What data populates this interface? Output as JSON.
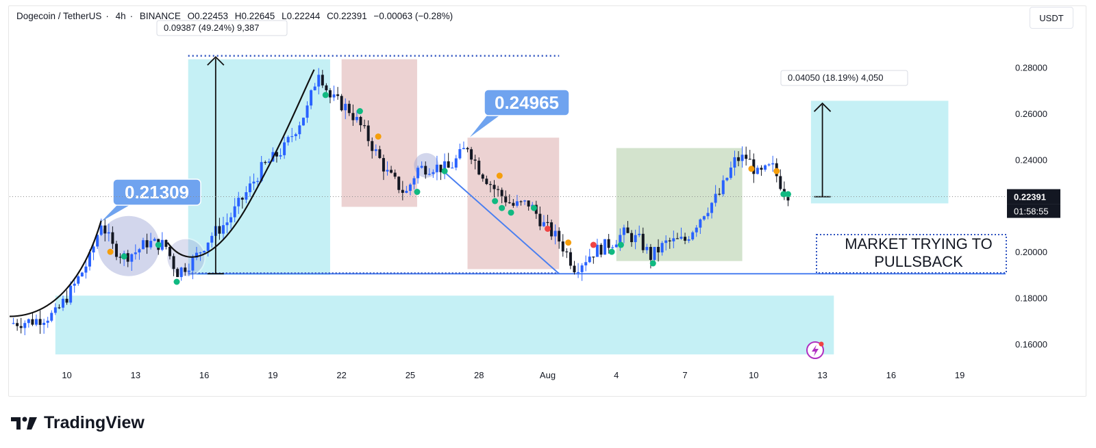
{
  "header": {
    "symbol": "Dogecoin / TetherUS",
    "interval": "4h",
    "exchange": "BINANCE",
    "open": "O0.22453",
    "high": "H0.22645",
    "low": "L0.22244",
    "close": "C0.22391",
    "change": "−0.00063 (−0.28%)"
  },
  "currency": "USDT",
  "brand": {
    "name": "TradingView"
  },
  "colors": {
    "bull": "#2962ff",
    "bear": "#131722",
    "zone_cyan": "#b2ebf2",
    "zone_red": "#e7c7c7",
    "zone_green": "#c8dcc0",
    "callout": "#6fa3ef",
    "trendline": "#4a7ff0"
  },
  "chart_data": {
    "type": "candlestick",
    "ylim": [
      0.152,
      0.292
    ],
    "x_range_days": [
      7.5,
      51
    ],
    "y_ticks": [
      "0.28000",
      "0.26000",
      "0.24000",
      "0.20000",
      "0.18000",
      "0.16000"
    ],
    "x_ticks": [
      {
        "label": "10",
        "day": 10
      },
      {
        "label": "13",
        "day": 13
      },
      {
        "label": "16",
        "day": 16
      },
      {
        "label": "19",
        "day": 19
      },
      {
        "label": "22",
        "day": 22
      },
      {
        "label": "25",
        "day": 25
      },
      {
        "label": "28",
        "day": 28
      },
      {
        "label": "Aug",
        "day": 31
      },
      {
        "label": "4",
        "day": 34
      },
      {
        "label": "7",
        "day": 37
      },
      {
        "label": "10",
        "day": 40
      },
      {
        "label": "13",
        "day": 43
      },
      {
        "label": "16",
        "day": 46
      },
      {
        "label": "19",
        "day": 49
      }
    ],
    "close_path": [
      [
        7.5,
        0.169
      ],
      [
        8.5,
        0.17
      ],
      [
        9.5,
        0.173
      ],
      [
        10.3,
        0.185
      ],
      [
        11.0,
        0.197
      ],
      [
        11.5,
        0.213
      ],
      [
        12.0,
        0.202
      ],
      [
        12.5,
        0.198
      ],
      [
        13.0,
        0.2
      ],
      [
        13.5,
        0.204
      ],
      [
        14.3,
        0.203
      ],
      [
        14.8,
        0.191
      ],
      [
        15.5,
        0.196
      ],
      [
        16.3,
        0.207
      ],
      [
        17.0,
        0.213
      ],
      [
        17.8,
        0.225
      ],
      [
        18.5,
        0.236
      ],
      [
        19.5,
        0.245
      ],
      [
        20.5,
        0.262
      ],
      [
        21.0,
        0.279
      ],
      [
        21.5,
        0.267
      ],
      [
        22.3,
        0.262
      ],
      [
        23.0,
        0.252
      ],
      [
        24.0,
        0.234
      ],
      [
        24.8,
        0.225
      ],
      [
        25.3,
        0.236
      ],
      [
        26.0,
        0.237
      ],
      [
        26.7,
        0.236
      ],
      [
        27.5,
        0.246
      ],
      [
        28.0,
        0.236
      ],
      [
        28.7,
        0.227
      ],
      [
        29.5,
        0.22
      ],
      [
        30.2,
        0.221
      ],
      [
        30.8,
        0.212
      ],
      [
        31.5,
        0.205
      ],
      [
        32.2,
        0.193
      ],
      [
        33.0,
        0.2
      ],
      [
        33.8,
        0.204
      ],
      [
        34.3,
        0.208
      ],
      [
        35.0,
        0.205
      ],
      [
        35.5,
        0.198
      ],
      [
        36.2,
        0.204
      ],
      [
        37.0,
        0.205
      ],
      [
        37.8,
        0.217
      ],
      [
        38.5,
        0.225
      ],
      [
        39.2,
        0.24
      ],
      [
        39.7,
        0.241
      ],
      [
        40.2,
        0.233
      ],
      [
        40.8,
        0.237
      ],
      [
        41.2,
        0.229
      ],
      [
        41.6,
        0.224
      ]
    ],
    "last_price": "0.22391",
    "countdown": "01:58:55",
    "callouts": [
      {
        "text": "0.21309",
        "day": 11.5,
        "price": 0.2131
      },
      {
        "text": "0.24965",
        "day": 27.6,
        "price": 0.2497
      }
    ],
    "measures": [
      {
        "label": "0.09387 (49.24%) 9,387",
        "day": 16.5,
        "from": 0.1905,
        "to": 0.2845
      },
      {
        "label": "0.04050 (18.19%) 4,050",
        "day": 43.0,
        "from": 0.2239,
        "to": 0.2644
      }
    ],
    "zones": [
      {
        "kind": "cyan",
        "d1": 9.5,
        "d2": 43.5,
        "p1": 0.1555,
        "p2": 0.181
      },
      {
        "kind": "cyan",
        "d1": 15.3,
        "d2": 21.5,
        "p1": 0.19,
        "p2": 0.2835
      },
      {
        "kind": "red",
        "d1": 22.0,
        "d2": 25.3,
        "p1": 0.2195,
        "p2": 0.2835
      },
      {
        "kind": "red",
        "d1": 27.5,
        "d2": 31.5,
        "p1": 0.1925,
        "p2": 0.2495
      },
      {
        "kind": "green",
        "d1": 34.0,
        "d2": 39.5,
        "p1": 0.196,
        "p2": 0.245
      },
      {
        "kind": "cyan",
        "d1": 42.5,
        "d2": 48.5,
        "p1": 0.221,
        "p2": 0.2655
      }
    ],
    "support_level": 0.1905,
    "resistance_level": 0.285,
    "annotations": [
      {
        "text": "MARKET TRYING TO\nPULLSBACK"
      }
    ]
  }
}
